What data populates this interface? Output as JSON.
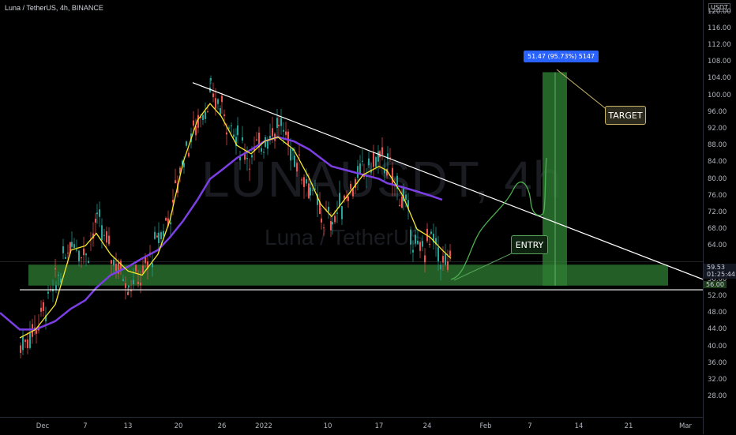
{
  "header": {
    "title": "Luna / TetherUS, 4h, BINANCE",
    "watermark_symbol": "LUNAUSDT, 4h",
    "watermark_name": "Luna / TetherUS"
  },
  "price_axis": {
    "currency": "USDT",
    "top_label": "120.00",
    "labels": [
      "116.00",
      "112.00",
      "108.00",
      "104.00",
      "100.00",
      "96.00",
      "92.00",
      "88.00",
      "84.00",
      "80.00",
      "76.00",
      "72.00",
      "68.00",
      "64.00",
      "56.00",
      "52.00",
      "48.00",
      "44.00",
      "40.00",
      "36.00",
      "32.00",
      "28.00"
    ],
    "last_price": "59.53",
    "countdown": "01:25:44",
    "target_zone_price": "56.00"
  },
  "time_axis": {
    "labels": [
      "Dec",
      "7",
      "13",
      "20",
      "26",
      "2022",
      "10",
      "17",
      "24",
      "Feb",
      "7",
      "14",
      "21",
      "Mar"
    ]
  },
  "annotations": {
    "measure_label": "51.47 (95.73%) 5147",
    "target_label": "TARGET",
    "entry_label": "ENTRY"
  },
  "colors": {
    "background": "#000000",
    "candle_up": "#26a69a",
    "candle_down": "#ef5350",
    "ma_fast": "#f5e72a",
    "ma_slow": "#7b3fe4",
    "support_zone": "#2e7d32",
    "trendline": "#ffffff"
  },
  "chart_data": {
    "type": "candlestick",
    "symbol": "LUNAUSDT",
    "timeframe": "4h",
    "exchange": "BINANCE",
    "ylim": [
      26,
      121
    ],
    "price_series": {
      "dates": [
        "Nov 29",
        "Dec 1",
        "Dec 3",
        "Dec 5",
        "Dec 7",
        "Dec 9",
        "Dec 11",
        "Dec 13",
        "Dec 15",
        "Dec 17",
        "Dec 19",
        "Dec 21",
        "Dec 23",
        "Dec 25",
        "Dec 26",
        "Dec 28",
        "Dec 30",
        "Jan 1",
        "Jan 3",
        "Jan 5",
        "Jan 7",
        "Jan 9",
        "Jan 11",
        "Jan 13",
        "Jan 15",
        "Jan 17",
        "Jan 18",
        "Jan 20",
        "Jan 22",
        "Jan 24",
        "Jan 26",
        "Jan 27"
      ],
      "close": [
        40,
        45,
        55,
        66,
        62,
        70,
        62,
        55,
        57,
        66,
        72,
        86,
        94,
        100,
        97,
        89,
        85,
        90,
        93,
        86,
        78,
        71,
        70,
        77,
        82,
        85,
        83,
        75,
        62,
        66,
        60,
        59.53
      ]
    },
    "ma_fast": {
      "name": "",
      "dates": [
        "Nov 29",
        "Dec 1",
        "Dec 3",
        "Dec 5",
        "Dec 7",
        "Dec 9",
        "Dec 11",
        "Dec 13",
        "Dec 15",
        "Dec 17",
        "Dec 19",
        "Dec 21",
        "Dec 23",
        "Dec 25",
        "Dec 26",
        "Dec 28",
        "Dec 30",
        "Jan 1",
        "Jan 3",
        "Jan 5",
        "Jan 7",
        "Jan 9",
        "Jan 11",
        "Jan 13",
        "Jan 15",
        "Jan 17",
        "Jan 18",
        "Jan 20",
        "Jan 22",
        "Jan 24",
        "Jan 26",
        "Jan 27"
      ],
      "values": [
        42,
        44,
        50,
        63,
        64,
        67,
        62,
        58,
        57,
        62,
        70,
        84,
        94,
        98,
        95,
        88,
        86,
        89,
        90,
        87,
        80,
        74,
        71,
        76,
        81,
        83,
        82,
        76,
        68,
        66,
        63,
        61
      ]
    },
    "ma_slow": {
      "name": "",
      "dates": [
        "Nov 26",
        "Nov 29",
        "Dec 1",
        "Dec 3",
        "Dec 5",
        "Dec 7",
        "Dec 9",
        "Dec 11",
        "Dec 13",
        "Dec 15",
        "Dec 17",
        "Dec 19",
        "Dec 21",
        "Dec 23",
        "Dec 25",
        "Dec 26",
        "Dec 28",
        "Dec 30",
        "Jan 1",
        "Jan 3",
        "Jan 5",
        "Jan 7",
        "Jan 9",
        "Jan 11",
        "Jan 13",
        "Jan 15",
        "Jan 17",
        "Jan 18",
        "Jan 20",
        "Jan 22",
        "Jan 24",
        "Jan 26"
      ],
      "values": [
        48,
        44,
        44,
        46,
        49,
        51,
        54,
        57,
        59,
        61,
        63,
        66,
        70,
        75,
        80,
        82,
        85,
        87,
        89,
        90,
        89,
        87,
        85,
        83,
        82,
        81,
        80,
        79,
        78,
        77,
        76,
        75
      ]
    },
    "support_zone": {
      "low": 54.5,
      "high": 59.5
    },
    "baseline_price": 53.5,
    "descending_trendline": {
      "from": {
        "date": "Dec 20",
        "price": 103
      },
      "to": {
        "date": "Mar 1",
        "price": 56
      }
    },
    "target_box": {
      "low": 54.5,
      "high": 105.5,
      "move": "51.47 (95.73%)"
    },
    "projected_path": [
      [
        "Jan 27",
        56
      ],
      [
        "Feb 1",
        63
      ],
      [
        "Feb 3",
        78
      ],
      [
        "Feb 5",
        72
      ],
      [
        "Feb 6",
        85
      ]
    ],
    "xlabel": "",
    "ylabel": "",
    "legend": "none",
    "grid": false
  }
}
